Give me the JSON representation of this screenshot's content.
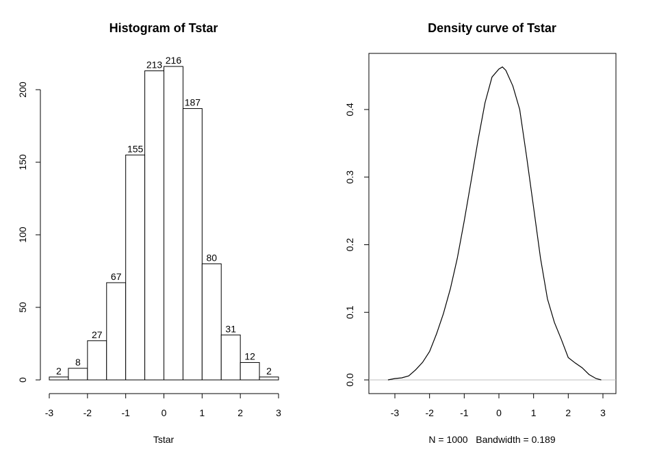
{
  "chart_data": [
    {
      "type": "bar",
      "title": "Histogram of Tstar",
      "xlabel": "Tstar",
      "ylabel": "",
      "bin_edges": [
        -3,
        -2.5,
        -2,
        -1.5,
        -1,
        -0.5,
        0,
        0.5,
        1,
        1.5,
        2,
        2.5,
        3
      ],
      "values": [
        2,
        8,
        27,
        67,
        155,
        213,
        216,
        187,
        80,
        31,
        12,
        2
      ],
      "data_labels": [
        "2",
        "8",
        "27",
        "67",
        "155",
        "213",
        "216",
        "187",
        "80",
        "31",
        "12",
        "2"
      ],
      "xlim": [
        -3,
        3
      ],
      "ylim": [
        0,
        200
      ],
      "xticks": [
        "-3",
        "-2",
        "-1",
        "0",
        "1",
        "2",
        "3"
      ],
      "yticks": [
        "0",
        "50",
        "100",
        "150",
        "200"
      ],
      "bar_fill": "#ffffff",
      "bar_stroke": "#000000"
    },
    {
      "type": "line",
      "title": "Density curve of Tstar",
      "xlabel": "N = 1000   Bandwidth = 0.189",
      "ylabel": "",
      "x": [
        -3.2,
        -3.0,
        -2.8,
        -2.6,
        -2.4,
        -2.2,
        -2.0,
        -1.8,
        -1.6,
        -1.4,
        -1.2,
        -1.0,
        -0.8,
        -0.6,
        -0.4,
        -0.2,
        0.0,
        0.1,
        0.2,
        0.4,
        0.6,
        0.8,
        1.0,
        1.2,
        1.4,
        1.6,
        1.8,
        2.0,
        2.2,
        2.4,
        2.6,
        2.8,
        2.95
      ],
      "y": [
        0.0,
        0.002,
        0.003,
        0.006,
        0.015,
        0.026,
        0.042,
        0.068,
        0.098,
        0.135,
        0.18,
        0.235,
        0.295,
        0.355,
        0.41,
        0.448,
        0.46,
        0.463,
        0.458,
        0.435,
        0.4,
        0.33,
        0.255,
        0.18,
        0.12,
        0.085,
        0.06,
        0.033,
        0.025,
        0.018,
        0.008,
        0.002,
        0.0
      ],
      "xticks": [
        "-3",
        "-2",
        "-1",
        "0",
        "1",
        "2",
        "3"
      ],
      "yticks": [
        "0.0",
        "0.1",
        "0.2",
        "0.3",
        "0.4"
      ],
      "xlim": [
        -3.6,
        3.4
      ],
      "ylim": [
        -0.02,
        0.48
      ],
      "baseline_color": "#bebebe",
      "line_color": "#000000"
    }
  ]
}
